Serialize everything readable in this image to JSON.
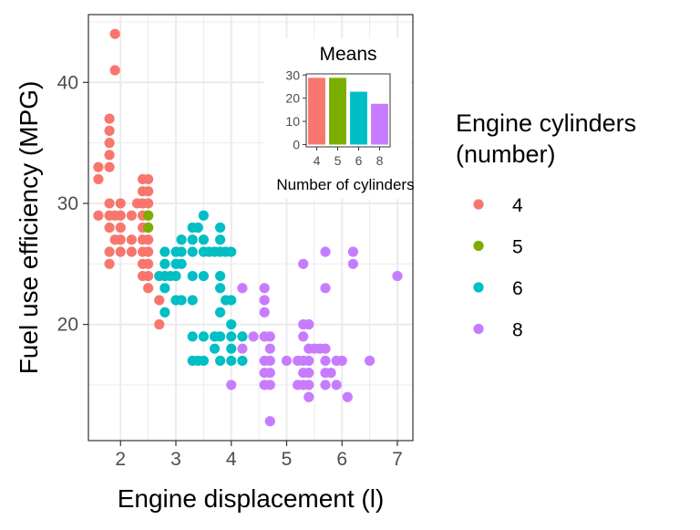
{
  "chart_data": [
    {
      "type": "scatter",
      "title": "",
      "xlabel": "Engine displacement (l)",
      "ylabel": "Fuel use efficiency (MPG)",
      "xlim": [
        1.42,
        7.28
      ],
      "ylim": [
        10.4,
        45.6
      ],
      "xticks": [
        2,
        3,
        4,
        5,
        6,
        7
      ],
      "yticks": [
        20,
        30,
        40
      ],
      "grid": true,
      "legend": {
        "title": "Engine cylinders\n(number)",
        "placement": "right",
        "entries": [
          {
            "label": "4",
            "color": "#F8766D"
          },
          {
            "label": "5",
            "color": "#7CAE00"
          },
          {
            "label": "6",
            "color": "#00BFC4"
          },
          {
            "label": "8",
            "color": "#C77CFF"
          }
        ]
      },
      "series": [
        {
          "name": "4",
          "color": "#F8766D",
          "points": [
            [
              1.9,
              44
            ],
            [
              1.9,
              41
            ],
            [
              1.8,
              37
            ],
            [
              1.8,
              36
            ],
            [
              1.8,
              35
            ],
            [
              1.8,
              34
            ],
            [
              1.8,
              33
            ],
            [
              1.6,
              33
            ],
            [
              1.6,
              32
            ],
            [
              2.4,
              32
            ],
            [
              1.6,
              29
            ],
            [
              1.8,
              29
            ],
            [
              1.9,
              29
            ],
            [
              2.0,
              29
            ],
            [
              2.2,
              29
            ],
            [
              2.4,
              29
            ],
            [
              1.8,
              30
            ],
            [
              2.0,
              30
            ],
            [
              2.3,
              30
            ],
            [
              2.4,
              30
            ],
            [
              2.4,
              31
            ],
            [
              2.5,
              31
            ],
            [
              2.5,
              32
            ],
            [
              2.5,
              30
            ],
            [
              1.8,
              28
            ],
            [
              2.0,
              28
            ],
            [
              1.9,
              27
            ],
            [
              1.8,
              26
            ],
            [
              2.0,
              26
            ],
            [
              2.2,
              26
            ],
            [
              2.4,
              26
            ],
            [
              2.5,
              26
            ],
            [
              2.0,
              27
            ],
            [
              2.2,
              27
            ],
            [
              2.4,
              27
            ],
            [
              2.5,
              27
            ],
            [
              2.5,
              28
            ],
            [
              2.4,
              28
            ],
            [
              2.5,
              29
            ],
            [
              1.8,
              25
            ],
            [
              2.4,
              25
            ],
            [
              2.5,
              25
            ],
            [
              2.4,
              24
            ],
            [
              2.5,
              24
            ],
            [
              2.5,
              23
            ],
            [
              2.7,
              22
            ],
            [
              2.7,
              20
            ]
          ]
        },
        {
          "name": "5",
          "color": "#7CAE00",
          "points": [
            [
              2.5,
              29
            ],
            [
              2.5,
              28
            ]
          ]
        },
        {
          "name": "6",
          "color": "#00BFC4",
          "points": [
            [
              2.8,
              26
            ],
            [
              2.8,
              25
            ],
            [
              2.8,
              24
            ],
            [
              2.8,
              23
            ],
            [
              2.8,
              21
            ],
            [
              2.7,
              24
            ],
            [
              2.9,
              24
            ],
            [
              3.0,
              26
            ],
            [
              3.0,
              25
            ],
            [
              3.0,
              24
            ],
            [
              3.1,
              26
            ],
            [
              3.1,
              27
            ],
            [
              3.1,
              25
            ],
            [
              3.1,
              22
            ],
            [
              3.0,
              22
            ],
            [
              3.3,
              28
            ],
            [
              3.3,
              27
            ],
            [
              3.3,
              26
            ],
            [
              3.3,
              24
            ],
            [
              3.3,
              22
            ],
            [
              3.3,
              19
            ],
            [
              3.3,
              17
            ],
            [
              3.4,
              28
            ],
            [
              3.4,
              17
            ],
            [
              3.5,
              29
            ],
            [
              3.5,
              27
            ],
            [
              3.5,
              26
            ],
            [
              3.5,
              24
            ],
            [
              3.5,
              19
            ],
            [
              3.5,
              17
            ],
            [
              3.6,
              26
            ],
            [
              3.7,
              26
            ],
            [
              3.7,
              19
            ],
            [
              3.7,
              18
            ],
            [
              3.8,
              28
            ],
            [
              3.8,
              27
            ],
            [
              3.8,
              26
            ],
            [
              3.8,
              24
            ],
            [
              3.8,
              23
            ],
            [
              3.8,
              21
            ],
            [
              3.8,
              19
            ],
            [
              3.8,
              17
            ],
            [
              3.9,
              26
            ],
            [
              3.9,
              22
            ],
            [
              4.0,
              26
            ],
            [
              4.0,
              22
            ],
            [
              4.0,
              20
            ],
            [
              4.0,
              19
            ],
            [
              4.0,
              18
            ],
            [
              4.0,
              17
            ],
            [
              4.2,
              17
            ],
            [
              4.2,
              19
            ]
          ]
        },
        {
          "name": "8",
          "color": "#C77CFF",
          "points": [
            [
              4.0,
              15
            ],
            [
              4.2,
              23
            ],
            [
              4.2,
              18
            ],
            [
              4.4,
              19
            ],
            [
              4.6,
              23
            ],
            [
              4.6,
              22
            ],
            [
              4.6,
              21
            ],
            [
              4.6,
              19
            ],
            [
              4.6,
              17
            ],
            [
              4.6,
              16
            ],
            [
              4.6,
              15
            ],
            [
              4.7,
              19
            ],
            [
              4.7,
              18
            ],
            [
              4.7,
              17
            ],
            [
              4.7,
              16
            ],
            [
              4.7,
              15
            ],
            [
              4.7,
              12
            ],
            [
              5.0,
              17
            ],
            [
              5.2,
              17
            ],
            [
              5.3,
              25
            ],
            [
              5.3,
              20
            ],
            [
              5.3,
              17
            ],
            [
              5.3,
              16
            ],
            [
              5.3,
              15
            ],
            [
              5.4,
              20
            ],
            [
              5.4,
              18
            ],
            [
              5.4,
              17
            ],
            [
              5.4,
              16
            ],
            [
              5.4,
              15
            ],
            [
              5.4,
              14
            ],
            [
              5.6,
              18
            ],
            [
              5.7,
              26
            ],
            [
              5.7,
              23
            ],
            [
              5.7,
              18
            ],
            [
              5.7,
              16
            ],
            [
              5.7,
              15
            ],
            [
              5.9,
              17
            ],
            [
              5.9,
              15
            ],
            [
              6.0,
              17
            ],
            [
              6.1,
              14
            ],
            [
              6.2,
              26
            ],
            [
              6.2,
              25
            ],
            [
              6.5,
              17
            ],
            [
              7.0,
              24
            ],
            [
              5.2,
              15
            ],
            [
              5.7,
              17
            ],
            [
              5.8,
              16
            ],
            [
              5.5,
              18
            ],
            [
              5.3,
              19
            ]
          ]
        }
      ]
    },
    {
      "type": "bar",
      "title": "Means",
      "xlabel": "Number of cylinders",
      "ylabel": "",
      "categories": [
        "4",
        "5",
        "6",
        "8"
      ],
      "values": [
        28.8,
        28.8,
        22.8,
        17.6
      ],
      "colors": [
        "#F8766D",
        "#7CAE00",
        "#00BFC4",
        "#C77CFF"
      ],
      "ylim": [
        -1,
        30.5
      ],
      "yticks": [
        0,
        10,
        20,
        30
      ],
      "grid": false,
      "placement": "inset top-right of scatter panel"
    }
  ]
}
